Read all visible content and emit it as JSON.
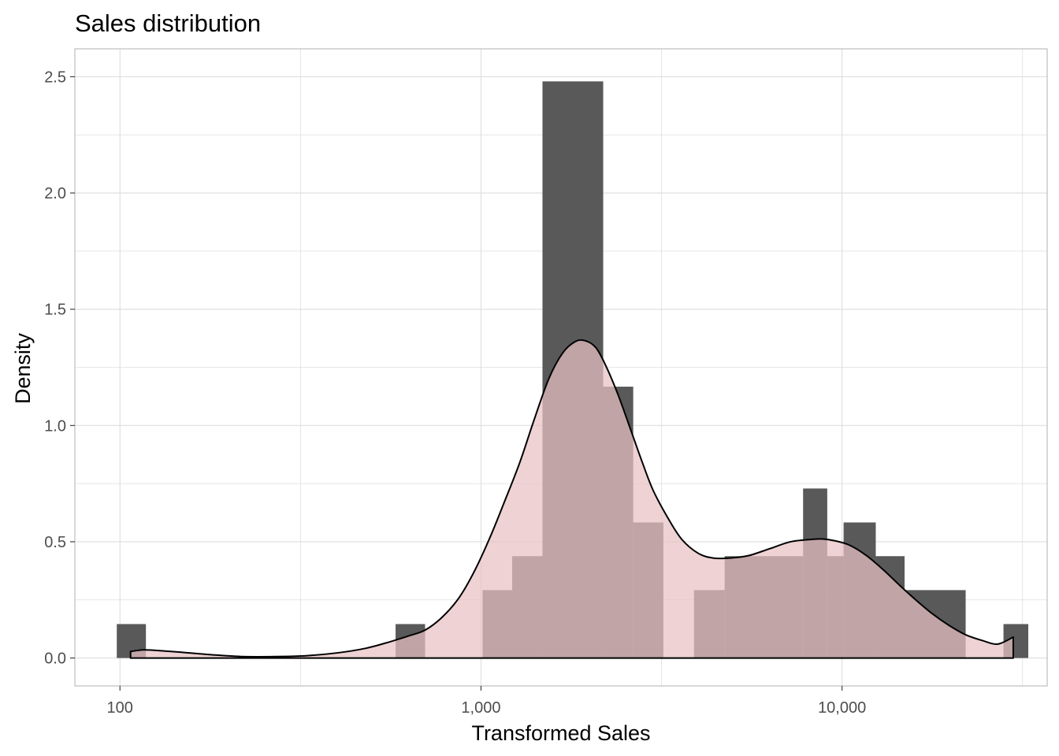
{
  "chart_data": {
    "type": "bar",
    "title": "Sales distribution",
    "xlabel": "Transformed Sales",
    "ylabel": "Density",
    "x_scale": "log10",
    "xlim": [
      75,
      37000
    ],
    "ylim": [
      -0.12,
      2.62
    ],
    "x_ticks": [
      {
        "value": 100,
        "label": "100"
      },
      {
        "value": 1000,
        "label": "1,000"
      },
      {
        "value": 10000,
        "label": "10,000"
      }
    ],
    "y_ticks": [
      {
        "value": 0.0,
        "label": "0.0"
      },
      {
        "value": 0.5,
        "label": "0.5"
      },
      {
        "value": 1.0,
        "label": "1.0"
      },
      {
        "value": 1.5,
        "label": "1.5"
      },
      {
        "value": 2.0,
        "label": "2.0"
      },
      {
        "value": 2.5,
        "label": "2.5"
      }
    ],
    "grid": true,
    "legend": "none",
    "colors": {
      "bar": "#595959",
      "density_fill": "#e8c1c3",
      "density_line": "#000000",
      "grid": "#dedede",
      "panel_border": "#bdbdbd"
    },
    "histogram": [
      {
        "x_start": 98,
        "x_end": 118,
        "density": 0.146
      },
      {
        "x_start": 580,
        "x_end": 700,
        "density": 0.146
      },
      {
        "x_start": 1010,
        "x_end": 1220,
        "density": 0.292
      },
      {
        "x_start": 1220,
        "x_end": 1480,
        "density": 0.438
      },
      {
        "x_start": 1480,
        "x_end": 2180,
        "density": 2.48
      },
      {
        "x_start": 2180,
        "x_end": 2640,
        "density": 1.167
      },
      {
        "x_start": 2640,
        "x_end": 3200,
        "density": 0.583
      },
      {
        "x_start": 3890,
        "x_end": 4730,
        "density": 0.292
      },
      {
        "x_start": 4730,
        "x_end": 7800,
        "density": 0.438
      },
      {
        "x_start": 7800,
        "x_end": 9100,
        "density": 0.729
      },
      {
        "x_start": 9100,
        "x_end": 10100,
        "density": 0.438
      },
      {
        "x_start": 10100,
        "x_end": 12400,
        "density": 0.583
      },
      {
        "x_start": 12400,
        "x_end": 14900,
        "density": 0.438
      },
      {
        "x_start": 14900,
        "x_end": 22000,
        "density": 0.292
      },
      {
        "x_start": 28000,
        "x_end": 32800,
        "density": 0.146
      }
    ],
    "density_curve": {
      "x": [
        107,
        116,
        128,
        150,
        180,
        220,
        270,
        330,
        400,
        480,
        560,
        630,
        700,
        780,
        870,
        960,
        1060,
        1160,
        1280,
        1400,
        1540,
        1680,
        1820,
        1940,
        2080,
        2220,
        2400,
        2600,
        2800,
        3000,
        3300,
        3600,
        4000,
        4400,
        4900,
        5500,
        6300,
        7200,
        8200,
        8800,
        9500,
        10500,
        11700,
        13000,
        14500,
        16000,
        17800,
        19800,
        22000,
        24500,
        27000,
        29800
      ],
      "y": [
        0.028,
        0.035,
        0.032,
        0.024,
        0.014,
        0.006,
        0.006,
        0.01,
        0.022,
        0.042,
        0.07,
        0.095,
        0.12,
        0.175,
        0.26,
        0.375,
        0.52,
        0.67,
        0.84,
        1.02,
        1.2,
        1.31,
        1.36,
        1.365,
        1.335,
        1.255,
        1.13,
        0.98,
        0.84,
        0.72,
        0.6,
        0.51,
        0.45,
        0.43,
        0.43,
        0.44,
        0.47,
        0.5,
        0.51,
        0.512,
        0.505,
        0.485,
        0.44,
        0.38,
        0.31,
        0.25,
        0.19,
        0.14,
        0.1,
        0.075,
        0.06,
        0.09
      ]
    }
  }
}
